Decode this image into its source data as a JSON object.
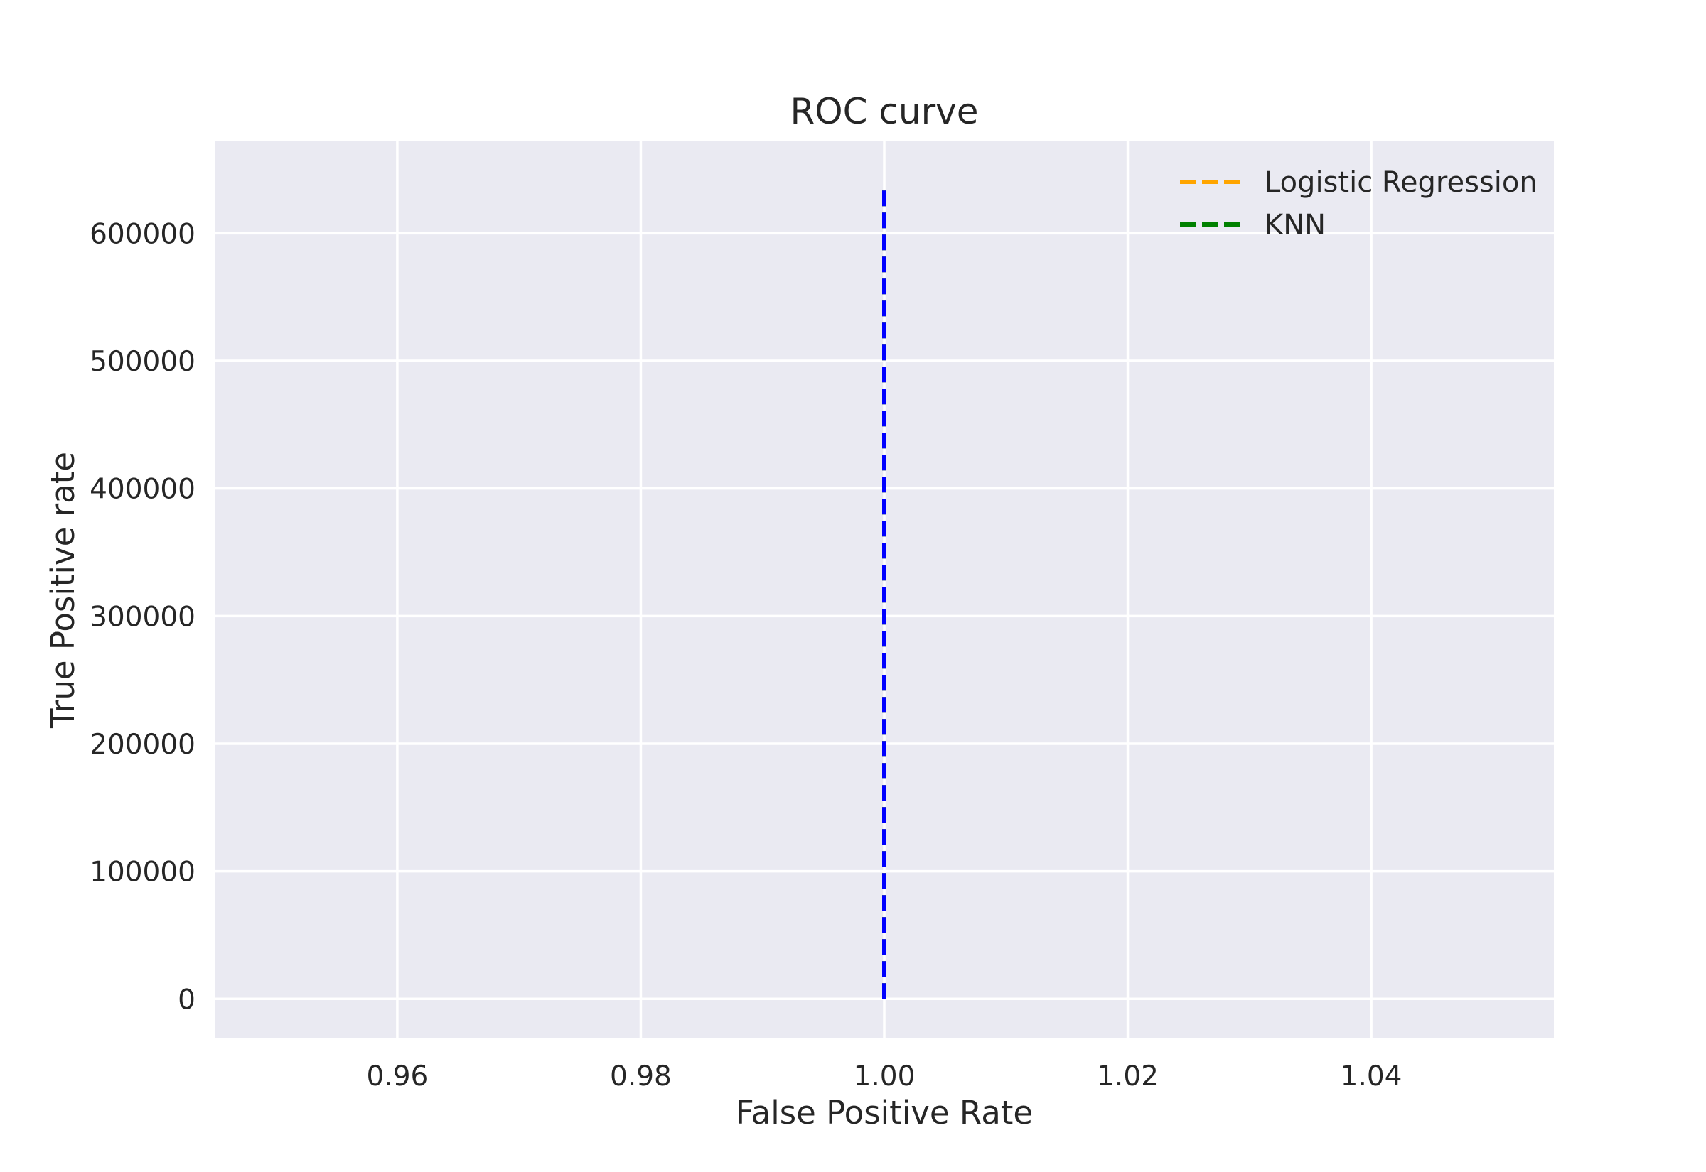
{
  "chart_data": {
    "type": "line",
    "title": "ROC curve",
    "xlabel": "False Positive Rate",
    "ylabel": "True Positive rate",
    "xlim": [
      0.945,
      1.055
    ],
    "ylim": [
      -31000,
      672000
    ],
    "x_ticks": [
      0.96,
      0.98,
      1.0,
      1.02,
      1.04
    ],
    "x_tick_labels": [
      "0.96",
      "0.98",
      "1.00",
      "1.02",
      "1.04"
    ],
    "y_ticks": [
      0,
      100000,
      200000,
      300000,
      400000,
      500000,
      600000
    ],
    "y_tick_labels": [
      "0",
      "100000",
      "200000",
      "300000",
      "400000",
      "500000",
      "600000"
    ],
    "grid": true,
    "background": "#eaeaf2",
    "legend_position": "upper right",
    "series": [
      {
        "name": "Logistic Regression",
        "color": "#ffa500",
        "linestyle": "dashed",
        "x": [
          1.0,
          1.0
        ],
        "y": [
          0,
          638000
        ],
        "legend": true
      },
      {
        "name": "KNN",
        "color": "#008000",
        "linestyle": "dashed",
        "x": [
          1.0,
          1.0
        ],
        "y": [
          0,
          638000
        ],
        "legend": true
      },
      {
        "color": "#0000ff",
        "linestyle": "dashed",
        "x": [
          1.0,
          1.0
        ],
        "y": [
          0,
          638000
        ],
        "legend": false
      }
    ]
  }
}
